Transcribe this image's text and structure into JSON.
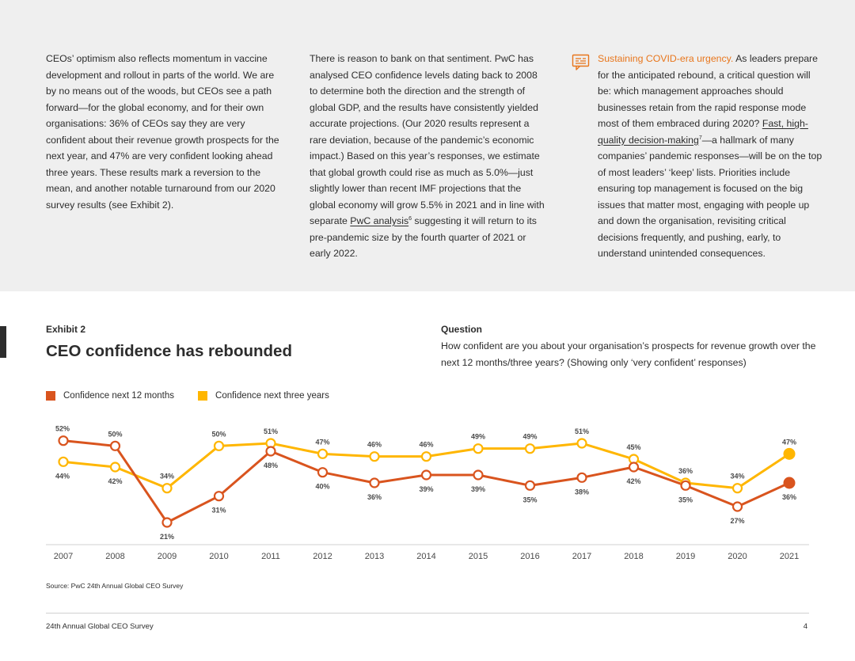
{
  "intro": {
    "col1": "CEOs’ optimism also reflects momentum in vaccine development and rollout in parts of the world. We are by no means out of the woods, but CEOs see a path forward—for the global economy, and for their own organisations: 36% of CEOs say they are very confident about their revenue growth prospects for the next year, and 47% are very confident looking ahead three years. These results mark a reversion to the mean, and another notable turnaround from our 2020 survey results (see Exhibit 2).",
    "col2_a": "There is reason to bank on that sentiment. PwC has analysed CEO confidence levels dating back to 2008 to determine both the direction and the strength of global GDP, and the results have consistently yielded accurate projections. (Our 2020 results represent a rare deviation, because of the pandemic’s economic impact.) Based on this year’s responses, we estimate that global growth could rise as much as 5.0%—just slightly lower than recent IMF projections that the global economy will grow 5.5% in 2021 and in line with separate ",
    "col2_link": "PwC analysis",
    "col2_sup": "6",
    "col2_b": " suggesting it will return to its pre-pandemic size by the fourth quarter of 2021 or early 2022.",
    "col3_heading": "Sustaining COVID-era urgency.",
    "col3_a": " As leaders prepare for the anticipated rebound, a critical question will be: which management approaches should businesses retain from the rapid response mode most of them embraced during 2020? ",
    "col3_link": "Fast, high-quality decision-making",
    "col3_sup": "7",
    "col3_b": "—a hallmark of many companies’ pandemic responses—will be on the top of most leaders’ ‘keep’ lists. Priorities include ensuring top management is focused on the big issues that matter most, engaging with people up and down the organisation, revisiting critical decisions frequently, and pushing, early, to understand unintended consequences."
  },
  "exhibit": {
    "label": "Exhibit 2",
    "title": "CEO confidence has rebounded",
    "question_label": "Question",
    "question_text": "How confident are you about your organisation’s prospects for revenue growth over the next 12 months/three years? (Showing only ‘very confident’ responses)"
  },
  "legend": {
    "series1": "Confidence next 12 months",
    "series2": "Confidence next three years"
  },
  "colors": {
    "series1": "#d9541e",
    "series2": "#ffb600",
    "accent": "#e8761c"
  },
  "chart_data": {
    "type": "line",
    "title": "CEO confidence has rebounded",
    "categories": [
      "2007",
      "2008",
      "2009",
      "2010",
      "2011",
      "2012",
      "2013",
      "2014",
      "2015",
      "2016",
      "2017",
      "2018",
      "2019",
      "2020",
      "2021"
    ],
    "series": [
      {
        "name": "Confidence next 12 months",
        "values": [
          52,
          50,
          21,
          31,
          48,
          40,
          36,
          39,
          39,
          35,
          38,
          42,
          35,
          27,
          36
        ],
        "labels": [
          "52%",
          "50%",
          "21%",
          "31%",
          "48%",
          "40%",
          "36%",
          "39%",
          "39%",
          "35%",
          "38%",
          "42%",
          "35%",
          "27%",
          "36%"
        ]
      },
      {
        "name": "Confidence next three years",
        "values": [
          44,
          42,
          34,
          50,
          51,
          47,
          46,
          46,
          49,
          49,
          51,
          45,
          36,
          34,
          47
        ],
        "labels": [
          "44%",
          "42%",
          "34%",
          "50%",
          "51%",
          "47%",
          "46%",
          "46%",
          "49%",
          "49%",
          "51%",
          "45%",
          "36%",
          "34%",
          "47%"
        ]
      }
    ],
    "ylim": [
      15,
      60
    ],
    "grid": false,
    "legend": "top-left"
  },
  "source": "Source: PwC 24th Annual Global CEO Survey",
  "footer": {
    "title": "24th Annual Global CEO Survey",
    "page": "4"
  }
}
